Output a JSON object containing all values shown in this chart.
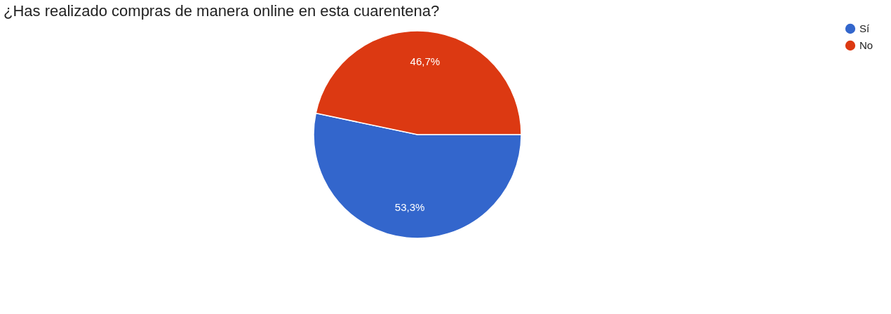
{
  "chart_data": {
    "type": "pie",
    "title": "¿Has realizado compras de manera online en esta cuarentena?",
    "categories": [
      "Sí",
      "No"
    ],
    "values": [
      53.3,
      46.7
    ],
    "colors": [
      "#3366cc",
      "#dc3912"
    ],
    "value_labels": [
      "53,3%",
      "46,7%"
    ],
    "legend": "right"
  }
}
